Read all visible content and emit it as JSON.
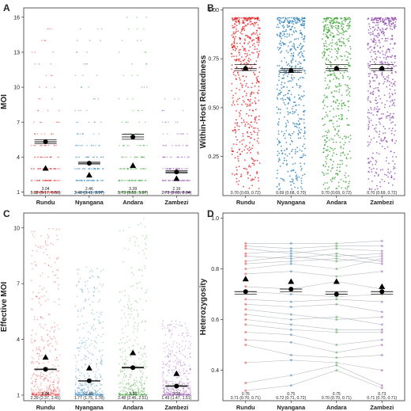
{
  "chart_data": [
    {
      "panel": "A",
      "type": "scatter",
      "ylabel": "MOI",
      "yticks": [
        1,
        4,
        7,
        10,
        13,
        16
      ],
      "ylim": [
        0.7,
        16.8
      ],
      "categories": [
        "Rundu",
        "Nyangana",
        "Andara",
        "Zambezi"
      ],
      "colors": [
        "#e31a1c",
        "#1f78b4",
        "#33a02c",
        "#8e44ad"
      ],
      "max_values": [
        15,
        15,
        16,
        9
      ],
      "mean": [
        5.32,
        3.48,
        5.73,
        2.73
      ],
      "ci": [
        [
          5.17,
          5.5
        ],
        [
          3.41,
          3.57
        ],
        [
          5.53,
          5.97
        ],
        [
          2.65,
          2.84
        ]
      ],
      "triangle": [
        3.04,
        2.46,
        3.28,
        2.16
      ],
      "text_top": [
        "3.04",
        "2.46",
        "3.28",
        "2.16"
      ],
      "text_bottom": [
        "5.32 (5.17, 5.50)",
        "3.48 (3.41, 3.57)",
        "5.73 (5.53, 5.97)",
        "2.73 (2.65, 2.84)"
      ]
    },
    {
      "panel": "B",
      "type": "scatter",
      "ylabel": "Within-Host Relatedness",
      "yticks": [
        0.25,
        0.5,
        0.75,
        1.0
      ],
      "ytick_labels": [
        "0.25",
        "0.50",
        "0.75",
        "1.00"
      ],
      "ylim": [
        0.05,
        1.01
      ],
      "categories": [
        "Rundu",
        "Nyangana",
        "Andara",
        "Zambezi"
      ],
      "colors": [
        "#e31a1c",
        "#1f78b4",
        "#33a02c",
        "#8e44ad"
      ],
      "mean": [
        0.7,
        0.69,
        0.7,
        0.7
      ],
      "ci": [
        [
          0.69,
          0.72
        ],
        [
          0.68,
          0.7
        ],
        [
          0.69,
          0.72
        ],
        [
          0.69,
          0.72
        ]
      ],
      "triangle": [
        0.7,
        0.69,
        0.7,
        0.7
      ],
      "text_bottom": [
        "0.70 (0.69, 0.72)",
        "0.69 (0.68, 0.70)",
        "0.70 (0.69, 0.72)",
        "0.70 (0.69, 0.72)"
      ]
    },
    {
      "panel": "C",
      "type": "scatter",
      "ylabel": "Effective MOI",
      "yticks": [
        1,
        4,
        7,
        10
      ],
      "ylim": [
        0.7,
        10.8
      ],
      "categories": [
        "Rundu",
        "Nyangana",
        "Andara",
        "Zambezi"
      ],
      "colors": [
        "#e31a1c",
        "#1f78b4",
        "#33a02c",
        "#8e44ad"
      ],
      "max_values": [
        10,
        8,
        10.5,
        5
      ],
      "mean": [
        2.39,
        1.77,
        2.48,
        1.49
      ],
      "ci": [
        [
          2.37,
          2.41
        ],
        [
          1.75,
          1.78
        ],
        [
          2.46,
          2.51
        ],
        [
          1.47,
          1.51
        ]
      ],
      "triangle": [
        3.04,
        2.46,
        3.28,
        2.16
      ],
      "text_top": [
        "3.04",
        "2.46",
        "3.28",
        "2.16"
      ],
      "text_bottom": [
        "2.39 (2.37, 2.41)",
        "1.77 (1.75, 1.78)",
        "2.48 (2.46, 2.51)",
        "1.49 (1.47, 1.51)"
      ]
    },
    {
      "panel": "D",
      "type": "line",
      "ylabel": "Heterozygosity",
      "yticks": [
        0.4,
        0.6,
        0.8,
        1.0
      ],
      "ytick_labels": [
        "0.4",
        "0.6",
        "0.8",
        "1.0"
      ],
      "ylim": [
        0.28,
        1.02
      ],
      "categories": [
        "Rundu",
        "Nyangana",
        "Andara",
        "Zambezi"
      ],
      "colors": [
        "#e31a1c",
        "#1f78b4",
        "#33a02c",
        "#8e44ad"
      ],
      "mean": [
        0.71,
        0.72,
        0.7,
        0.71
      ],
      "ci": [
        [
          0.7,
          0.71
        ],
        [
          0.71,
          0.72
        ],
        [
          0.7,
          0.71
        ],
        [
          0.7,
          0.71
        ]
      ],
      "triangle": [
        0.76,
        0.75,
        0.75,
        0.73
      ],
      "text_top": [
        "0.76",
        "0.75",
        "0.75",
        "0.73"
      ],
      "text_bottom": [
        "0.71 (0.70, 0.71)",
        "0.72 (0.71, 0.72)",
        "0.70 (0.70, 0.71)",
        "0.71 (0.70, 0.71)"
      ],
      "series": [
        {
          "values": [
            0.9,
            0.9,
            0.9,
            0.91
          ]
        },
        {
          "values": [
            0.89,
            0.88,
            0.89,
            0.89
          ]
        },
        {
          "values": [
            0.88,
            0.86,
            0.88,
            0.87
          ]
        },
        {
          "values": [
            0.86,
            0.87,
            0.85,
            0.86
          ]
        },
        {
          "values": [
            0.85,
            0.84,
            0.86,
            0.83
          ]
        },
        {
          "values": [
            0.83,
            0.85,
            0.83,
            0.85
          ]
        },
        {
          "values": [
            0.82,
            0.83,
            0.84,
            0.82
          ]
        },
        {
          "values": [
            0.8,
            0.82,
            0.8,
            0.84
          ]
        },
        {
          "values": [
            0.78,
            0.79,
            0.77,
            0.79
          ]
        },
        {
          "values": [
            0.73,
            0.72,
            0.75,
            0.72
          ]
        },
        {
          "values": [
            0.71,
            0.7,
            0.69,
            0.7
          ]
        },
        {
          "values": [
            0.68,
            0.67,
            0.68,
            0.67
          ]
        },
        {
          "values": [
            0.66,
            0.65,
            0.66,
            0.63
          ]
        },
        {
          "values": [
            0.64,
            0.62,
            0.6,
            0.61
          ]
        },
        {
          "values": [
            0.62,
            0.6,
            0.61,
            0.58
          ]
        },
        {
          "values": [
            0.6,
            0.58,
            0.56,
            0.56
          ]
        },
        {
          "values": [
            0.58,
            0.56,
            0.55,
            0.55
          ]
        },
        {
          "values": [
            0.55,
            0.54,
            0.5,
            0.52
          ]
        },
        {
          "values": [
            0.52,
            0.51,
            0.47,
            0.5
          ]
        },
        {
          "values": [
            0.5,
            0.46,
            0.45,
            0.46
          ]
        },
        {
          "values": [
            0.43,
            0.44,
            0.43,
            0.4
          ]
        },
        {
          "values": [
            0.35,
            0.38,
            0.42,
            0.34
          ]
        },
        {
          "values": [
            0.32,
            0.34,
            0.4,
            0.33
          ]
        }
      ]
    }
  ],
  "panels": [
    {
      "letter": "A"
    },
    {
      "letter": "B"
    },
    {
      "letter": "C"
    },
    {
      "letter": "D"
    }
  ]
}
